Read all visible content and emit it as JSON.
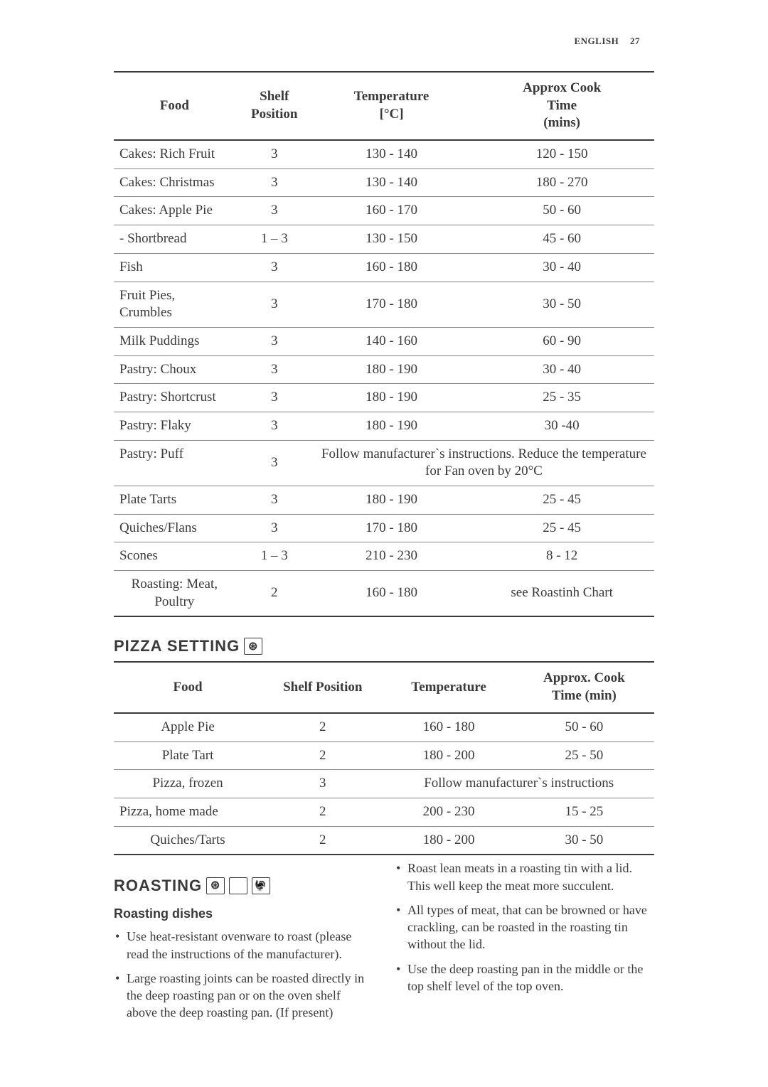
{
  "header": {
    "language": "ENGLISH",
    "page_number": "27"
  },
  "table1": {
    "columns": [
      "Food",
      "Shelf Position",
      "Temperature [°C]",
      "Approx Cook Time (mins)"
    ],
    "rows": [
      {
        "food": "Cakes: Rich Fruit",
        "shelf": "3",
        "temp": "130 - 140",
        "time": "120 - 150"
      },
      {
        "food": "Cakes: Christmas",
        "shelf": "3",
        "temp": "130 - 140",
        "time": "180 - 270"
      },
      {
        "food": "Cakes: Apple Pie",
        "shelf": "3",
        "temp": "160 - 170",
        "time": "50 - 60"
      },
      {
        "food": "- Shortbread",
        "shelf": "1 – 3",
        "temp": "130 - 150",
        "time": "45 - 60"
      },
      {
        "food": "Fish",
        "shelf": "3",
        "temp": "160 - 180",
        "time": "30 - 40"
      },
      {
        "food": "Fruit Pies, Crumbles",
        "shelf": "3",
        "temp": "170 - 180",
        "time": "30 - 50"
      },
      {
        "food": "Milk Puddings",
        "shelf": "3",
        "temp": "140 - 160",
        "time": "60 - 90"
      },
      {
        "food": "Pastry: Choux",
        "shelf": "3",
        "temp": "180 - 190",
        "time": "30 - 40"
      },
      {
        "food": "Pastry: Shortcrust",
        "shelf": "3",
        "temp": "180 - 190",
        "time": "25 - 35"
      },
      {
        "food": "Pastry: Flaky",
        "shelf": "3",
        "temp": "180 - 190",
        "time": "30 -40"
      },
      {
        "food": "Pastry: Puff",
        "shelf": "3",
        "note": "Follow manufacturer`s instructions. Reduce the temperature for Fan oven by 20°C"
      },
      {
        "food": "Plate Tarts",
        "shelf": "3",
        "temp": "180 - 190",
        "time": "25 - 45"
      },
      {
        "food": "Quiches/Flans",
        "shelf": "3",
        "temp": "170 - 180",
        "time": "25 - 45"
      },
      {
        "food": "Scones",
        "shelf": "1 – 3",
        "temp": "210 - 230",
        "time": "8 - 12"
      },
      {
        "food": "Roasting: Meat, Poultry",
        "shelf": "2",
        "temp": "160 - 180",
        "time": "see Roastinh Chart"
      }
    ]
  },
  "sections": {
    "pizza_heading": "PIZZA SETTING",
    "roasting_heading": "ROASTING",
    "roasting_subheading": "Roasting dishes"
  },
  "table2": {
    "columns": [
      "Food",
      "Shelf Position",
      "Temperature",
      "Approx. Cook Time (min)"
    ],
    "rows": [
      {
        "food": "Apple Pie",
        "shelf": "2",
        "temp": "160 - 180",
        "time": "50 - 60"
      },
      {
        "food": "Plate Tart",
        "shelf": "2",
        "temp": "180 - 200",
        "time": "25 - 50"
      },
      {
        "food": "Pizza, frozen",
        "shelf": "3",
        "note": "Follow manufacturer`s instructions"
      },
      {
        "food": "Pizza, home made",
        "shelf": "2",
        "temp": "200 - 230",
        "time": "15 - 25"
      },
      {
        "food": "Quiches/Tarts",
        "shelf": "2",
        "temp": "180 - 200",
        "time": "30 - 50"
      }
    ]
  },
  "roasting_tips": {
    "left": [
      "Use heat-resistant ovenware to roast (please read the instructions of the manufacturer).",
      "Large roasting joints can be roasted directly in the deep roasting pan or on the oven shelf above the deep roasting pan. (If present)"
    ],
    "right": [
      "Roast lean meats in a roasting tin with a lid. This well keep the meat more succulent.",
      "All types of meat, that can be browned or have crackling, can be roasted in the roasting tin without the lid.",
      "Use the deep roasting pan in the middle or the top shelf level of the top oven."
    ]
  },
  "styling": {
    "page_bg": "#ffffff",
    "text_color": "#3a3a3a",
    "border_light": "#888888",
    "border_dark": "#3a3a3a",
    "body_font_size": 19,
    "heading_font_size": 22
  }
}
